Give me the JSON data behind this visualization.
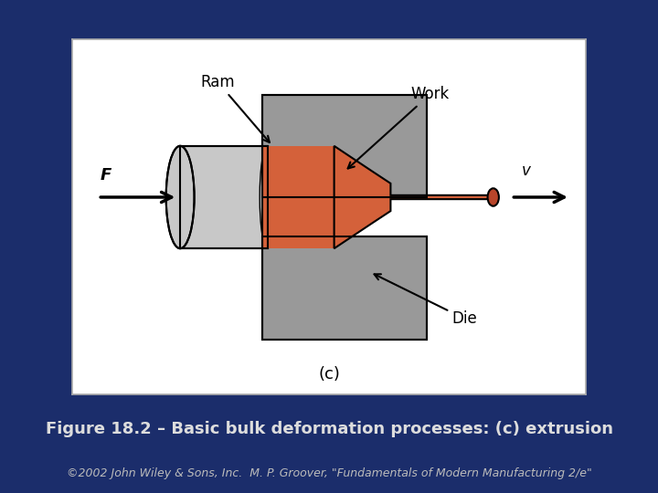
{
  "bg_color": "#1b2d6b",
  "gray_die": "#999999",
  "gray_billet": "#c8c8c8",
  "orange_work": "#d4613a",
  "title": "Figure 18.2 – Basic bulk deformation processes: (c) extrusion",
  "copyright": "©2002 John Wiley & Sons, Inc.  M. P. Groover, \"Fundamentals of Modern Manufacturing 2/e\"",
  "label_ram": "Ram",
  "label_work": "Work",
  "label_die": "Die",
  "label_F": "F",
  "label_v": "v",
  "label_c": "(c)",
  "title_fontsize": 13,
  "copyright_fontsize": 9,
  "title_color": "#dddddd",
  "copyright_color": "#bbbbbb"
}
